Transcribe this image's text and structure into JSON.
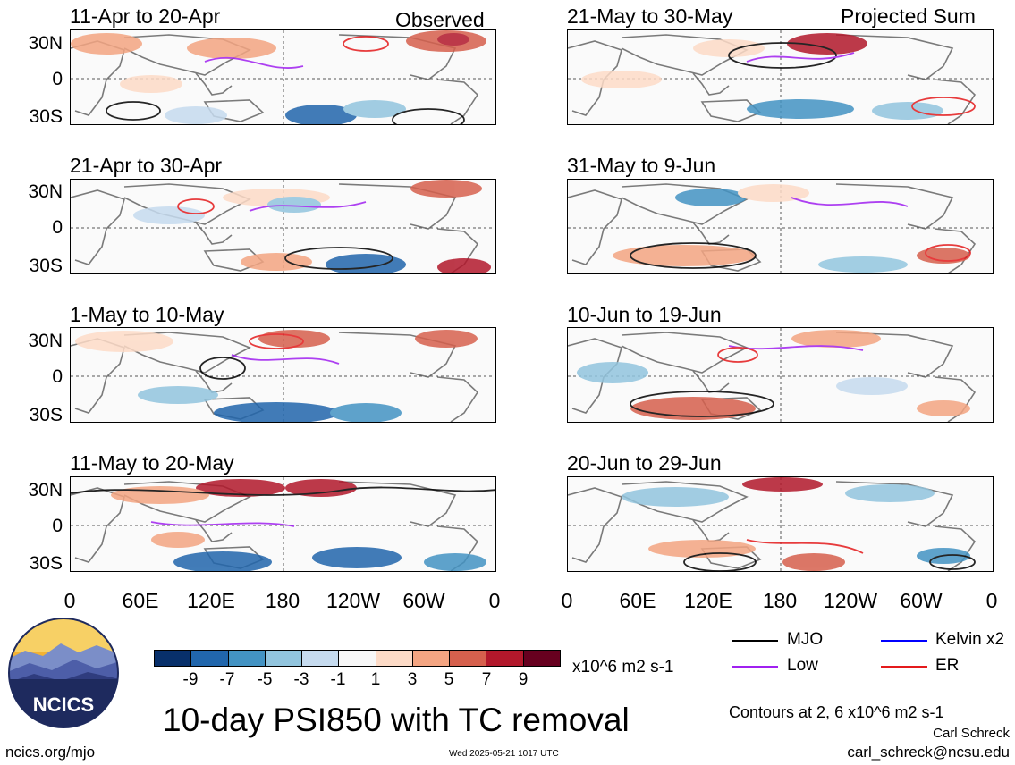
{
  "title": "10-day PSI850 with TC removal",
  "unit": "x10^6 m2 s-1",
  "contour_note": "Contours at 2, 6 x10^6 m2 s-1",
  "author": "Carl Schreck",
  "email": "carl_schreck@ncsu.edu",
  "site": "ncics.org/mjo",
  "timestamp": "Wed 2025-05-21 1017 UTC",
  "logo_text": "NCICS",
  "left_label": "Observed",
  "right_label": "Projected Sum",
  "left_panels": [
    "11-Apr to 20-Apr",
    "21-Apr to 30-Apr",
    "1-May to 10-May",
    "11-May to 20-May"
  ],
  "right_panels": [
    "21-May to 30-May",
    "31-May to 9-Jun",
    "10-Jun to 19-Jun",
    "20-Jun to 29-Jun"
  ],
  "y_ticks": [
    "30N",
    "0",
    "30S"
  ],
  "x_ticks": [
    "0",
    "60E",
    "120E",
    "180",
    "120W",
    "60W",
    "0"
  ],
  "colorbar": {
    "labels": [
      "-9",
      "-7",
      "-5",
      "-3",
      "-1",
      "1",
      "3",
      "5",
      "7",
      "9"
    ],
    "colors": [
      "#08306b",
      "#2166ac",
      "#4393c3",
      "#92c5de",
      "#c6dbef",
      "#f7f7f7",
      "#fddbc7",
      "#f4a582",
      "#d6604d",
      "#b2182b",
      "#67001f"
    ]
  },
  "legend": [
    {
      "label": "MJO",
      "color": "#000000"
    },
    {
      "label": "Kelvin x2",
      "color": "#0000ff"
    },
    {
      "label": "Low",
      "color": "#a020f0"
    },
    {
      "label": "ER",
      "color": "#e41a1c"
    }
  ]
}
